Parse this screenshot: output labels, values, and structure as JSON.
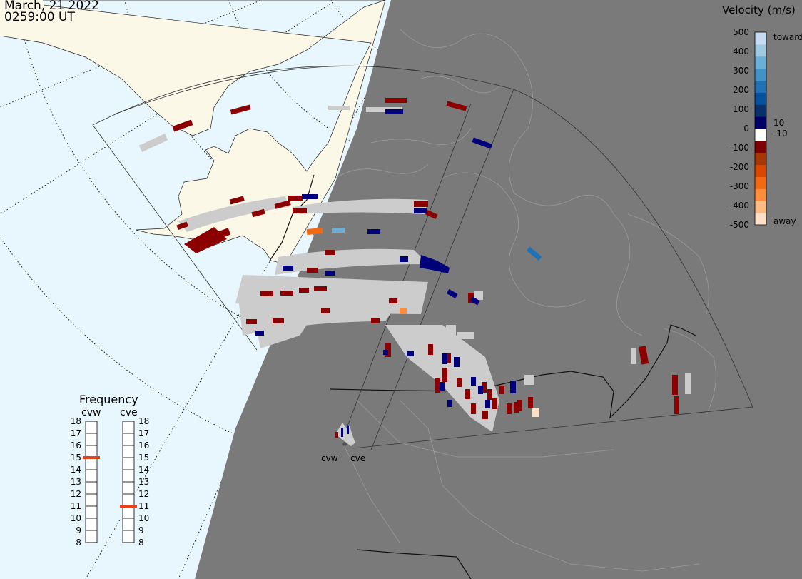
{
  "header": {
    "date": "March, 21 2022",
    "time": "0259:00 UT"
  },
  "colorbar": {
    "title": "Velocity (m/s)",
    "ticks": [
      "500",
      "400",
      "300",
      "200",
      "100",
      "0",
      "-100",
      "-200",
      "-300",
      "-400",
      "-500"
    ],
    "toward_label": "toward",
    "away_label": "away",
    "ten_label": "10",
    "neg_ten_label": "-10",
    "colors": [
      "#fde0c8",
      "#fdbb84",
      "#fd8d3c",
      "#f16913",
      "#d94801",
      "#a63603",
      "#7f0000",
      "#ffffff",
      "#000066",
      "#08306b",
      "#08519c",
      "#2171b5",
      "#4292c6",
      "#6baed6",
      "#9ecae1",
      "#c6dbef"
    ]
  },
  "frequency": {
    "title": "Frequency",
    "left_radar": "cvw",
    "right_radar": "cve",
    "ticks": [
      "18",
      "17",
      "16",
      "15",
      "14",
      "13",
      "12",
      "11",
      "10",
      "9",
      "8"
    ],
    "cvw_value_mhz": 15,
    "cve_value_mhz": 11,
    "indicator_color": "#e8421b"
  },
  "radars": {
    "cvw_label": "cvw",
    "cve_label": "cve"
  },
  "colors": {
    "ocean": "#e8f6fd",
    "land": "#fbf8e8",
    "night": "#7a7a7a",
    "gray_scatter": "#cccccc",
    "dark_red": "#8b0000",
    "dark_blue": "#00007a"
  }
}
